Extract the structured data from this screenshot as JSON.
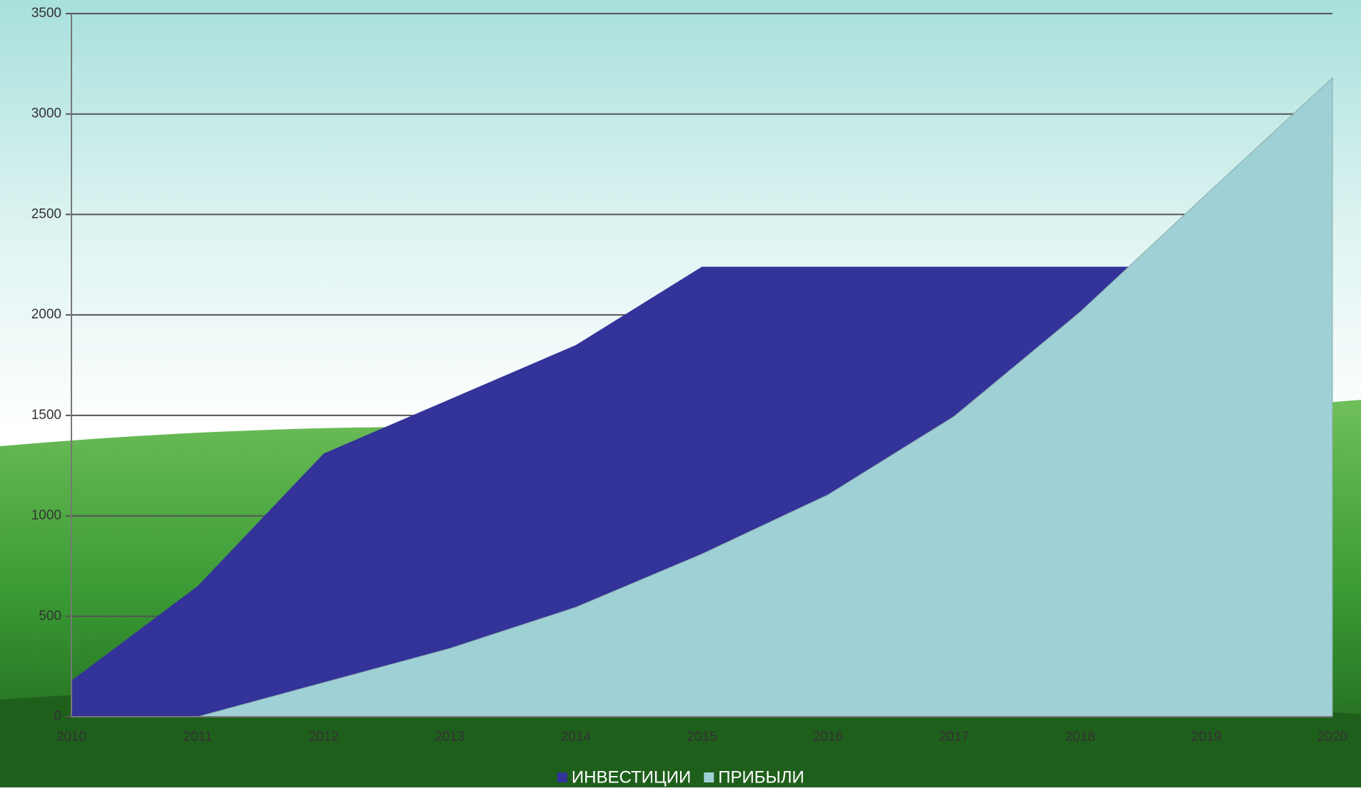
{
  "chart_data": {
    "type": "area",
    "categories": [
      "2010",
      "2011",
      "2012",
      "2013",
      "2014",
      "2015",
      "2016",
      "2017",
      "2018",
      "2019",
      "2020"
    ],
    "series": [
      {
        "name": "ИНВЕСТИЦИИ",
        "color": "#333399",
        "values": [
          180,
          650,
          1310,
          1580,
          1850,
          2240,
          2240,
          2240,
          2240,
          2240,
          2240
        ]
      },
      {
        "name": "ПРИБЫЛИ",
        "color": "#9fd0d6",
        "values": [
          0,
          0,
          170,
          340,
          545,
          810,
          1105,
          1495,
          2015,
          2600,
          3180
        ]
      }
    ],
    "ylim": [
      0,
      3500
    ],
    "yticks": [
      0,
      500,
      1000,
      1500,
      2000,
      2500,
      3000,
      3500
    ],
    "grid": true,
    "legend": "bottom"
  }
}
